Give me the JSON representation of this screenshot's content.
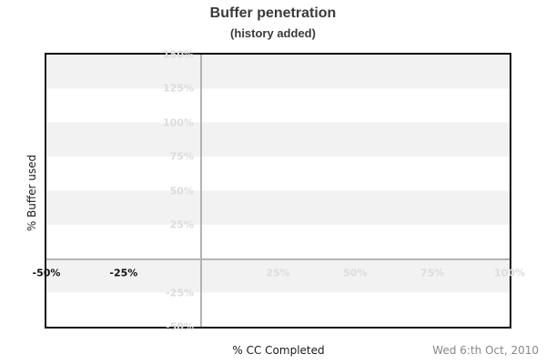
{
  "title": "Buffer penetration",
  "subtitle": "(history added)",
  "footer": {
    "date": "Wed 6:th Oct, 2010"
  },
  "axes": {
    "x_label": "% CC Completed",
    "y_label": "% Buffer used"
  },
  "chart_data": {
    "type": "line",
    "title": "Buffer penetration",
    "subtitle": "(history added)",
    "xlabel": "% CC Completed",
    "ylabel": "% Buffer used",
    "xlim": [
      -50,
      100
    ],
    "ylim": [
      -50,
      150
    ],
    "x_ticks": [
      {
        "value": -50,
        "label": "-50%",
        "emphasized": true
      },
      {
        "value": -25,
        "label": "-25%",
        "emphasized": true
      },
      {
        "value": 25,
        "label": "25%",
        "emphasized": false
      },
      {
        "value": 50,
        "label": "50%",
        "emphasized": false
      },
      {
        "value": 75,
        "label": "75%",
        "emphasized": false
      },
      {
        "value": 100,
        "label": "100%",
        "emphasized": false
      }
    ],
    "y_ticks": [
      {
        "value": 150,
        "label": "150%"
      },
      {
        "value": 125,
        "label": "125%"
      },
      {
        "value": 100,
        "label": "100%"
      },
      {
        "value": 75,
        "label": "75%"
      },
      {
        "value": 50,
        "label": "50%"
      },
      {
        "value": 25,
        "label": "25%"
      },
      {
        "value": -25,
        "label": "-25%"
      },
      {
        "value": -50,
        "label": "-50%"
      }
    ],
    "series": [],
    "legend": null,
    "grid": {
      "horizontal_band_step_percent": 25,
      "band_color": "#f2f2f2",
      "zero_line_color": "#b3b3b3"
    },
    "colors": {
      "frame": "#0a0a0a",
      "muted_tick": "#dcdcdc",
      "emphasized_tick": "#111111",
      "title_text": "#3a3a3a",
      "axis_title_text": "#1a1a1a",
      "date_text": "#878787"
    }
  }
}
